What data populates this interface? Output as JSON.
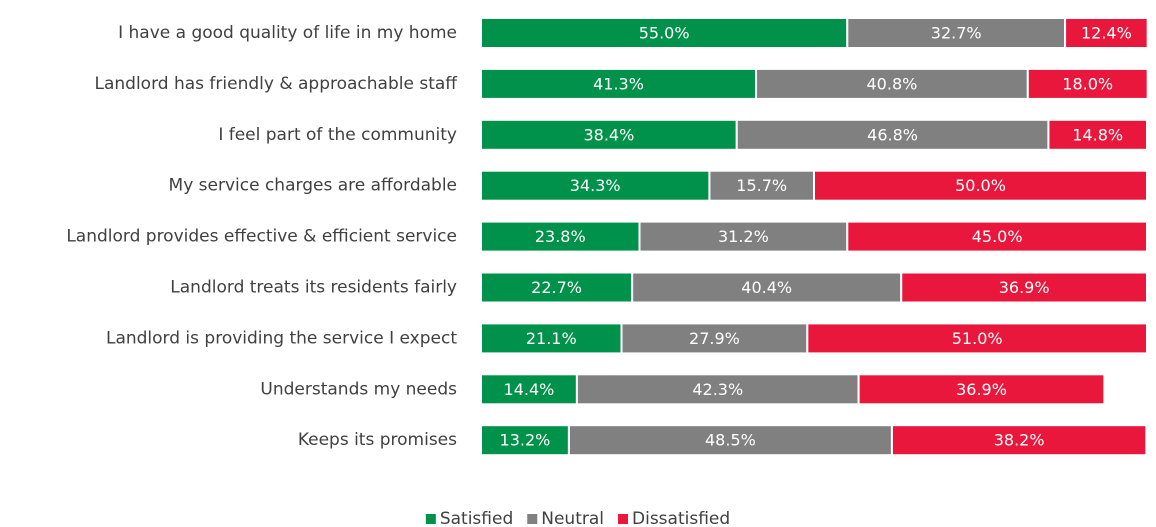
{
  "chart_data": {
    "type": "stacked_bar_horizontal",
    "categories": [
      "I have a good quality of life in my home",
      "Landlord has friendly & approachable staff",
      "I feel part of the community",
      "My service charges are affordable",
      "Landlord provides effective & efficient service",
      "Landlord treats its residents fairly",
      "Landlord is providing the service I expect",
      "Understands my needs",
      "Keeps its promises"
    ],
    "series": [
      {
        "name": "Satisfied",
        "color": "#00924a",
        "values": [
          55.0,
          41.3,
          38.4,
          34.3,
          23.8,
          22.7,
          21.1,
          14.4,
          13.2
        ],
        "value_labels": [
          "55.0%",
          "41.3%",
          "38.4%",
          "34.3%",
          "23.8%",
          "22.7%",
          "21.1%",
          "14.4%",
          "13.2%"
        ]
      },
      {
        "name": "Neutral",
        "color": "#808080",
        "values": [
          32.7,
          40.8,
          46.8,
          15.7,
          31.2,
          40.4,
          27.9,
          42.3,
          48.5
        ],
        "value_labels": [
          "32.7%",
          "40.8%",
          "46.8%",
          "15.7%",
          "31.2%",
          "40.4%",
          "27.9%",
          "42.3%",
          "48.5%"
        ]
      },
      {
        "name": "Dissatisfied",
        "color": "#e8173b",
        "values": [
          12.4,
          18.0,
          14.8,
          50.0,
          45.0,
          36.9,
          51.0,
          36.9,
          38.2
        ],
        "value_labels": [
          "12.4%",
          "18.0%",
          "14.8%",
          "50.0%",
          "45.0%",
          "36.9%",
          "51.0%",
          "36.9%",
          "38.2%"
        ]
      }
    ],
    "xlim": [
      0,
      100
    ],
    "legend": "bottom"
  }
}
